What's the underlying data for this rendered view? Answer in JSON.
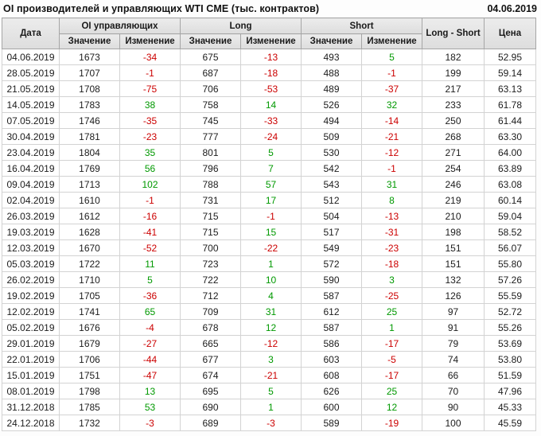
{
  "header": {
    "title": "OI производителей и управляющих WTI CME (тыс. контрактов)",
    "report_date": "04.06.2019"
  },
  "colors": {
    "negative": "#cc0000",
    "positive": "#009900",
    "text": "#1c1c1c"
  },
  "table": {
    "columns": {
      "date": "Дата",
      "oi_group": "OI управляющих",
      "long_group": "Long",
      "short_group": "Short",
      "value": "Значение",
      "change": "Изменение",
      "long_short": "Long - Short",
      "price": "Цена"
    },
    "row_fields": [
      {
        "key": "date",
        "type": "plain"
      },
      {
        "key": "oi",
        "type": "plain"
      },
      {
        "key": "oi_chg",
        "type": "signed"
      },
      {
        "key": "long",
        "type": "plain"
      },
      {
        "key": "long_chg",
        "type": "signed"
      },
      {
        "key": "short",
        "type": "plain"
      },
      {
        "key": "short_chg",
        "type": "signed"
      },
      {
        "key": "long_short",
        "type": "plain"
      },
      {
        "key": "price",
        "type": "plain"
      }
    ],
    "group_size": 4,
    "rows": [
      {
        "date": "04.06.2019",
        "oi": 1673,
        "oi_chg": -34,
        "long": 675,
        "long_chg": -13,
        "short": 493,
        "short_chg": 5,
        "long_short": 182,
        "price": "52.95"
      },
      {
        "date": "28.05.2019",
        "oi": 1707,
        "oi_chg": -1,
        "long": 687,
        "long_chg": -18,
        "short": 488,
        "short_chg": -1,
        "long_short": 199,
        "price": "59.14"
      },
      {
        "date": "21.05.2019",
        "oi": 1708,
        "oi_chg": -75,
        "long": 706,
        "long_chg": -53,
        "short": 489,
        "short_chg": -37,
        "long_short": 217,
        "price": "63.13"
      },
      {
        "date": "14.05.2019",
        "oi": 1783,
        "oi_chg": 38,
        "long": 758,
        "long_chg": 14,
        "short": 526,
        "short_chg": 32,
        "long_short": 233,
        "price": "61.78"
      },
      {
        "date": "07.05.2019",
        "oi": 1746,
        "oi_chg": -35,
        "long": 745,
        "long_chg": -33,
        "short": 494,
        "short_chg": -14,
        "long_short": 250,
        "price": "61.44"
      },
      {
        "date": "30.04.2019",
        "oi": 1781,
        "oi_chg": -23,
        "long": 777,
        "long_chg": -24,
        "short": 509,
        "short_chg": -21,
        "long_short": 268,
        "price": "63.30"
      },
      {
        "date": "23.04.2019",
        "oi": 1804,
        "oi_chg": 35,
        "long": 801,
        "long_chg": 5,
        "short": 530,
        "short_chg": -12,
        "long_short": 271,
        "price": "64.00"
      },
      {
        "date": "16.04.2019",
        "oi": 1769,
        "oi_chg": 56,
        "long": 796,
        "long_chg": 7,
        "short": 542,
        "short_chg": -1,
        "long_short": 254,
        "price": "63.89"
      },
      {
        "date": "09.04.2019",
        "oi": 1713,
        "oi_chg": 102,
        "long": 788,
        "long_chg": 57,
        "short": 543,
        "short_chg": 31,
        "long_short": 246,
        "price": "63.08"
      },
      {
        "date": "02.04.2019",
        "oi": 1610,
        "oi_chg": -1,
        "long": 731,
        "long_chg": 17,
        "short": 512,
        "short_chg": 8,
        "long_short": 219,
        "price": "60.14"
      },
      {
        "date": "26.03.2019",
        "oi": 1612,
        "oi_chg": -16,
        "long": 715,
        "long_chg": -1,
        "short": 504,
        "short_chg": -13,
        "long_short": 210,
        "price": "59.04"
      },
      {
        "date": "19.03.2019",
        "oi": 1628,
        "oi_chg": -41,
        "long": 715,
        "long_chg": 15,
        "short": 517,
        "short_chg": -31,
        "long_short": 198,
        "price": "58.52"
      },
      {
        "date": "12.03.2019",
        "oi": 1670,
        "oi_chg": -52,
        "long": 700,
        "long_chg": -22,
        "short": 549,
        "short_chg": -23,
        "long_short": 151,
        "price": "56.07"
      },
      {
        "date": "05.03.2019",
        "oi": 1722,
        "oi_chg": 11,
        "long": 723,
        "long_chg": 1,
        "short": 572,
        "short_chg": -18,
        "long_short": 151,
        "price": "55.80"
      },
      {
        "date": "26.02.2019",
        "oi": 1710,
        "oi_chg": 5,
        "long": 722,
        "long_chg": 10,
        "short": 590,
        "short_chg": 3,
        "long_short": 132,
        "price": "57.26"
      },
      {
        "date": "19.02.2019",
        "oi": 1705,
        "oi_chg": -36,
        "long": 712,
        "long_chg": 4,
        "short": 587,
        "short_chg": -25,
        "long_short": 126,
        "price": "55.59"
      },
      {
        "date": "12.02.2019",
        "oi": 1741,
        "oi_chg": 65,
        "long": 709,
        "long_chg": 31,
        "short": 612,
        "short_chg": 25,
        "long_short": 97,
        "price": "52.72"
      },
      {
        "date": "05.02.2019",
        "oi": 1676,
        "oi_chg": -4,
        "long": 678,
        "long_chg": 12,
        "short": 587,
        "short_chg": 1,
        "long_short": 91,
        "price": "55.26"
      },
      {
        "date": "29.01.2019",
        "oi": 1679,
        "oi_chg": -27,
        "long": 665,
        "long_chg": -12,
        "short": 586,
        "short_chg": -17,
        "long_short": 79,
        "price": "53.69"
      },
      {
        "date": "22.01.2019",
        "oi": 1706,
        "oi_chg": -44,
        "long": 677,
        "long_chg": 3,
        "short": 603,
        "short_chg": -5,
        "long_short": 74,
        "price": "53.80"
      },
      {
        "date": "15.01.2019",
        "oi": 1751,
        "oi_chg": -47,
        "long": 674,
        "long_chg": -21,
        "short": 608,
        "short_chg": -17,
        "long_short": 66,
        "price": "51.59"
      },
      {
        "date": "08.01.2019",
        "oi": 1798,
        "oi_chg": 13,
        "long": 695,
        "long_chg": 5,
        "short": 626,
        "short_chg": 25,
        "long_short": 70,
        "price": "47.96"
      },
      {
        "date": "31.12.2018",
        "oi": 1785,
        "oi_chg": 53,
        "long": 690,
        "long_chg": 1,
        "short": 600,
        "short_chg": 12,
        "long_short": 90,
        "price": "45.33"
      },
      {
        "date": "24.12.2018",
        "oi": 1732,
        "oi_chg": -3,
        "long": 689,
        "long_chg": -3,
        "short": 589,
        "short_chg": -19,
        "long_short": 100,
        "price": "45.59"
      }
    ]
  }
}
